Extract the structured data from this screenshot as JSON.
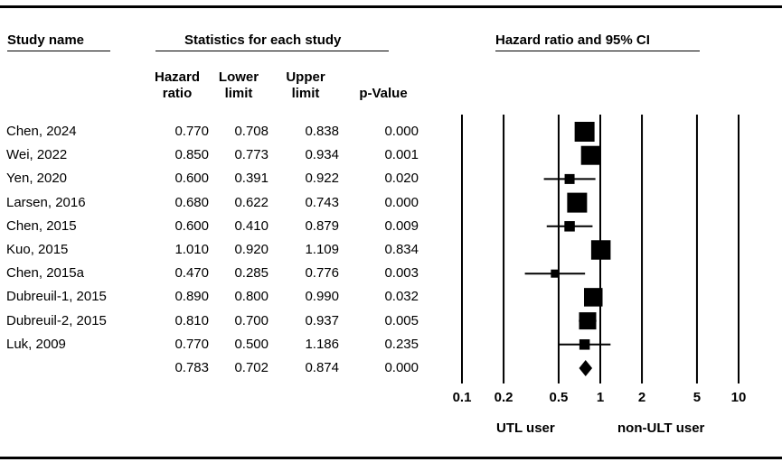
{
  "headers": {
    "study_name": "Study name",
    "statistics": "Statistics for each study",
    "forest": "Hazard ratio and 95% CI"
  },
  "columns": [
    {
      "line1": "Hazard",
      "line2": "ratio"
    },
    {
      "line1": "Lower",
      "line2": "limit"
    },
    {
      "line1": "Upper",
      "line2": "limit"
    },
    {
      "line1": "",
      "line2": "p-Value"
    }
  ],
  "chart_data": {
    "type": "forest",
    "x_scale": "log",
    "x_ticks": [
      "0.1",
      "0.2",
      "0.5",
      "1",
      "2",
      "5",
      "10"
    ],
    "xlabel_left": "UTL user",
    "xlabel_right": "non-ULT user",
    "studies": [
      {
        "name": "Chen, 2024",
        "hr": "0.770",
        "lower": "0.708",
        "upper": "0.838",
        "p": "0.000",
        "weight": 3.2
      },
      {
        "name": "Wei, 2022",
        "hr": "0.850",
        "lower": "0.773",
        "upper": "0.934",
        "p": "0.001",
        "weight": 3.0
      },
      {
        "name": "Yen, 2020",
        "hr": "0.600",
        "lower": "0.391",
        "upper": "0.922",
        "p": "0.020",
        "weight": 1.0
      },
      {
        "name": "Larsen, 2016",
        "hr": "0.680",
        "lower": "0.622",
        "upper": "0.743",
        "p": "0.000",
        "weight": 3.2
      },
      {
        "name": "Chen, 2015",
        "hr": "0.600",
        "lower": "0.410",
        "upper": "0.879",
        "p": "0.009",
        "weight": 1.1
      },
      {
        "name": "Kuo, 2015",
        "hr": "1.010",
        "lower": "0.920",
        "upper": "1.109",
        "p": "0.834",
        "weight": 3.1
      },
      {
        "name": "Chen, 2015a",
        "hr": "0.470",
        "lower": "0.285",
        "upper": "0.776",
        "p": "0.003",
        "weight": 0.6
      },
      {
        "name": "Dubreuil-1, 2015",
        "hr": "0.890",
        "lower": "0.800",
        "upper": "0.990",
        "p": "0.032",
        "weight": 2.9
      },
      {
        "name": "Dubreuil-2, 2015",
        "hr": "0.810",
        "lower": "0.700",
        "upper": "0.937",
        "p": "0.005",
        "weight": 2.6
      },
      {
        "name": "Luk, 2009",
        "hr": "0.770",
        "lower": "0.500",
        "upper": "1.186",
        "p": "0.235",
        "weight": 1.1
      }
    ],
    "summary": {
      "name": "",
      "hr": "0.783",
      "lower": "0.702",
      "upper": "0.874",
      "p": "0.000"
    }
  }
}
